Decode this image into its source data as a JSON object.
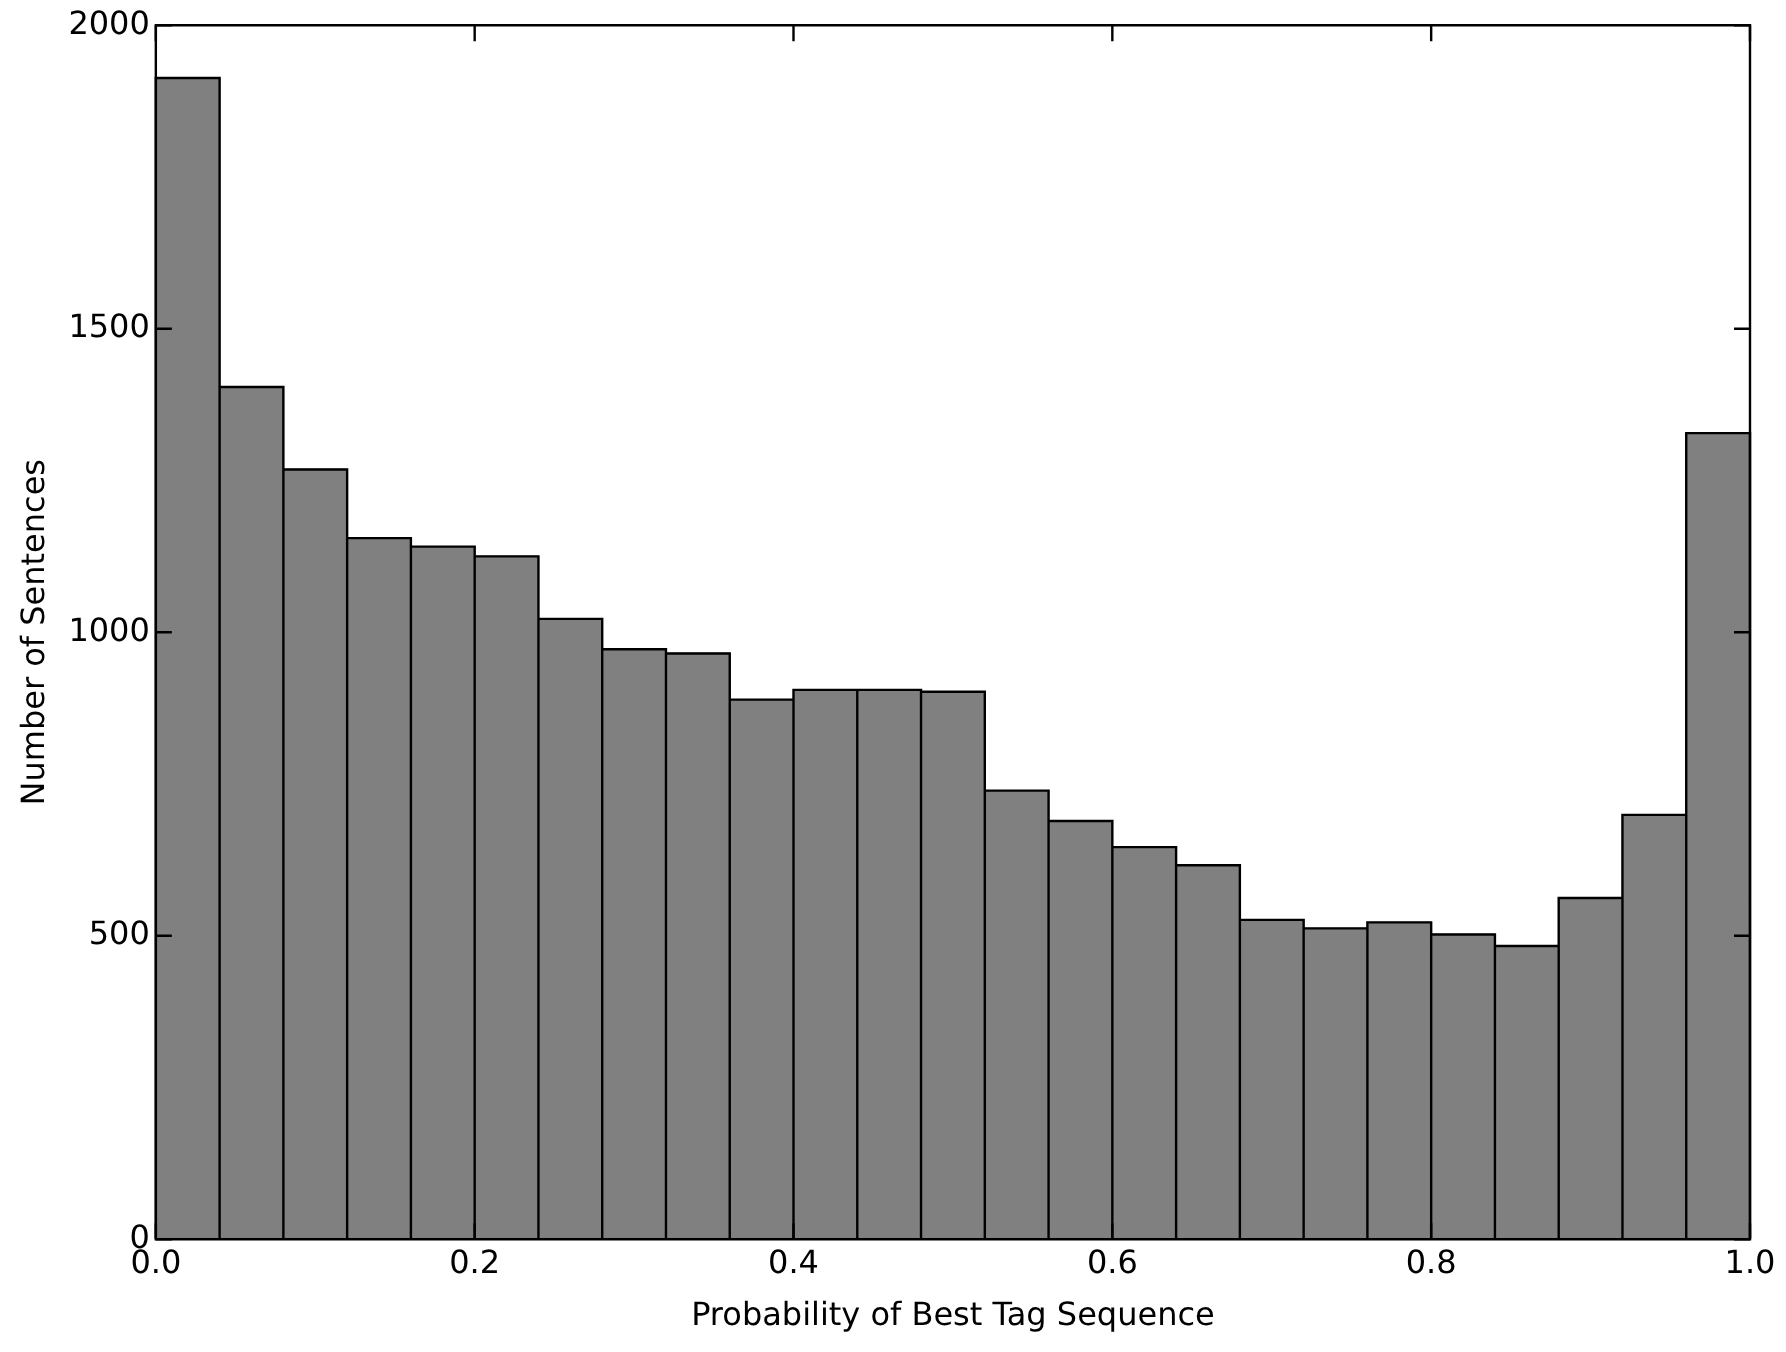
{
  "chart_data": {
    "type": "histogram",
    "xlabel": "Probability of Best Tag Sequence",
    "ylabel": "Number of Sentences",
    "bins": [
      0,
      0.04,
      0.08,
      0.12,
      0.16,
      0.2,
      0.24,
      0.28,
      0.32,
      0.36,
      0.4,
      0.44,
      0.48,
      0.52,
      0.56,
      0.6,
      0.64,
      0.68,
      0.72,
      0.76,
      0.8,
      0.84,
      0.88,
      0.92,
      0.96,
      1.0
    ],
    "values": [
      1913,
      1404,
      1268,
      1155,
      1141,
      1125,
      1022,
      972,
      965,
      889,
      905,
      905,
      902,
      739,
      689,
      646,
      616,
      526,
      512,
      522,
      502,
      483,
      562,
      699,
      1328
    ],
    "color": "#808080",
    "xlim": [
      0,
      1
    ],
    "xticks": [
      {
        "value": 0,
        "label": "0.0"
      },
      {
        "value": 0.2,
        "label": "0.2"
      },
      {
        "value": 0.4,
        "label": "0.4"
      },
      {
        "value": 0.6,
        "label": "0.6"
      },
      {
        "value": 0.8,
        "label": "0.8"
      },
      {
        "value": 1,
        "label": "1.0"
      }
    ],
    "ylim": [
      0,
      2000
    ],
    "yticks": [
      0,
      500,
      1000,
      1500,
      2000
    ],
    "grid": false,
    "legend": false
  }
}
